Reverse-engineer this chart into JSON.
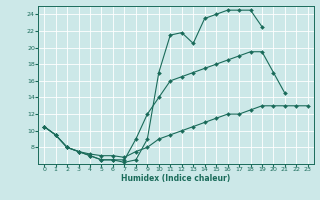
{
  "xlabel": "Humidex (Indice chaleur)",
  "bg_color": "#cce8e8",
  "line_color": "#1a6b5a",
  "grid_color": "#ffffff",
  "xlim": [
    -0.5,
    23.5
  ],
  "ylim": [
    6,
    25
  ],
  "xticks": [
    0,
    1,
    2,
    3,
    4,
    5,
    6,
    7,
    8,
    9,
    10,
    11,
    12,
    13,
    14,
    15,
    16,
    17,
    18,
    19,
    20,
    21,
    22,
    23
  ],
  "yticks": [
    8,
    10,
    12,
    14,
    16,
    18,
    20,
    22,
    24
  ],
  "curve1_x": [
    0,
    1,
    2,
    3,
    4,
    5,
    6,
    7,
    8,
    9,
    10,
    11,
    12,
    13,
    14,
    15,
    16,
    17,
    18,
    19,
    20
  ],
  "curve1_y": [
    10.5,
    9.5,
    8.0,
    7.5,
    7.0,
    6.5,
    6.5,
    6.2,
    6.5,
    9.0,
    17.0,
    21.5,
    21.8,
    20.5,
    23.5,
    24.0,
    24.5,
    24.5,
    24.5,
    22.5,
    null
  ],
  "curve2_x": [
    0,
    1,
    2,
    3,
    4,
    5,
    6,
    7,
    8,
    9,
    10,
    11,
    12,
    13,
    14,
    15,
    16,
    17,
    18,
    19,
    20,
    21
  ],
  "curve2_y": [
    10.5,
    9.5,
    8.0,
    7.5,
    7.0,
    6.5,
    6.5,
    6.5,
    9.0,
    12.0,
    14.0,
    16.0,
    16.5,
    17.0,
    17.5,
    18.0,
    18.5,
    19.0,
    19.5,
    19.5,
    17.0,
    14.5
  ],
  "curve3_x": [
    0,
    1,
    2,
    3,
    4,
    5,
    6,
    7,
    8,
    9,
    10,
    11,
    12,
    13,
    14,
    15,
    16,
    17,
    18,
    19,
    20,
    21,
    22,
    23
  ],
  "curve3_y": [
    10.5,
    9.5,
    8.0,
    7.5,
    7.2,
    7.0,
    7.0,
    6.8,
    7.5,
    8.0,
    9.0,
    9.5,
    10.0,
    10.5,
    11.0,
    11.5,
    12.0,
    12.0,
    12.5,
    13.0,
    13.0,
    13.0,
    13.0,
    13.0
  ]
}
